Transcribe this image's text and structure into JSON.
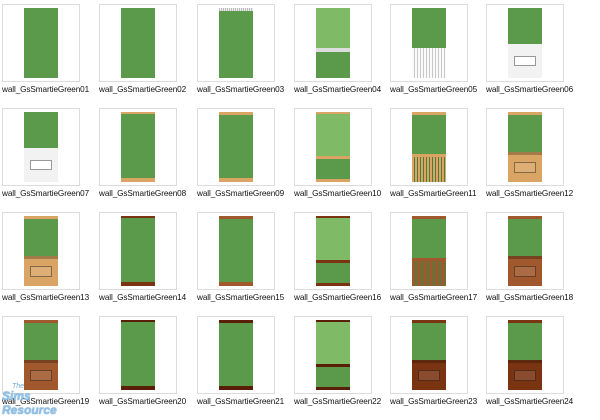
{
  "files": [
    {
      "label": "wall_GsSmartieGreen01",
      "style": "plain"
    },
    {
      "label": "wall_GsSmartieGreen02",
      "style": "plain"
    },
    {
      "label": "wall_GsSmartieGreen03",
      "style": "trim-grey"
    },
    {
      "label": "wall_GsSmartieGreen04",
      "style": "light-split"
    },
    {
      "label": "wall_GsSmartieGreen05",
      "style": "wainscot-white-bead"
    },
    {
      "label": "wall_GsSmartieGreen06",
      "style": "wainscot-white-panel"
    },
    {
      "label": "wall_GsSmartieGreen07",
      "style": "wainscot-white-panel"
    },
    {
      "label": "wall_GsSmartieGreen08",
      "style": "base-light-wood"
    },
    {
      "label": "wall_GsSmartieGreen09",
      "style": "trim-light-wood"
    },
    {
      "label": "wall_GsSmartieGreen10",
      "style": "light-split-wood"
    },
    {
      "label": "wall_GsSmartieGreen11",
      "style": "wainscot-light-bead"
    },
    {
      "label": "wall_GsSmartieGreen12",
      "style": "wainscot-light-panel"
    },
    {
      "label": "wall_GsSmartieGreen13",
      "style": "wainscot-light-panel"
    },
    {
      "label": "wall_GsSmartieGreen14",
      "style": "base-dark-wood"
    },
    {
      "label": "wall_GsSmartieGreen15",
      "style": "trim-mid-wood"
    },
    {
      "label": "wall_GsSmartieGreen16",
      "style": "light-split-dark"
    },
    {
      "label": "wall_GsSmartieGreen17",
      "style": "wainscot-mid-bead"
    },
    {
      "label": "wall_GsSmartieGreen18",
      "style": "wainscot-mid-panel"
    },
    {
      "label": "wall_GsSmartieGreen19",
      "style": "wainscot-mid-panel"
    },
    {
      "label": "wall_GsSmartieGreen20",
      "style": "base-darkest-wood"
    },
    {
      "label": "wall_GsSmartieGreen21",
      "style": "trim-darkest-wood"
    },
    {
      "label": "wall_GsSmartieGreen22",
      "style": "light-split-darkest"
    },
    {
      "label": "wall_GsSmartieGreen23",
      "style": "wainscot-dark-panel"
    },
    {
      "label": "wall_GsSmartieGreen24",
      "style": "wainscot-dark-panel"
    }
  ],
  "colors": {
    "green": "#5b9a4a",
    "light_green": "#7fba66",
    "white_wainscot": "#f2f2f2",
    "light_wood": "#d9a464",
    "mid_wood": "#a0582c",
    "dark_wood": "#7a3412",
    "darkest_wood": "#5a1f08"
  },
  "watermark": {
    "small": "The",
    "big": "Sims Resource"
  }
}
